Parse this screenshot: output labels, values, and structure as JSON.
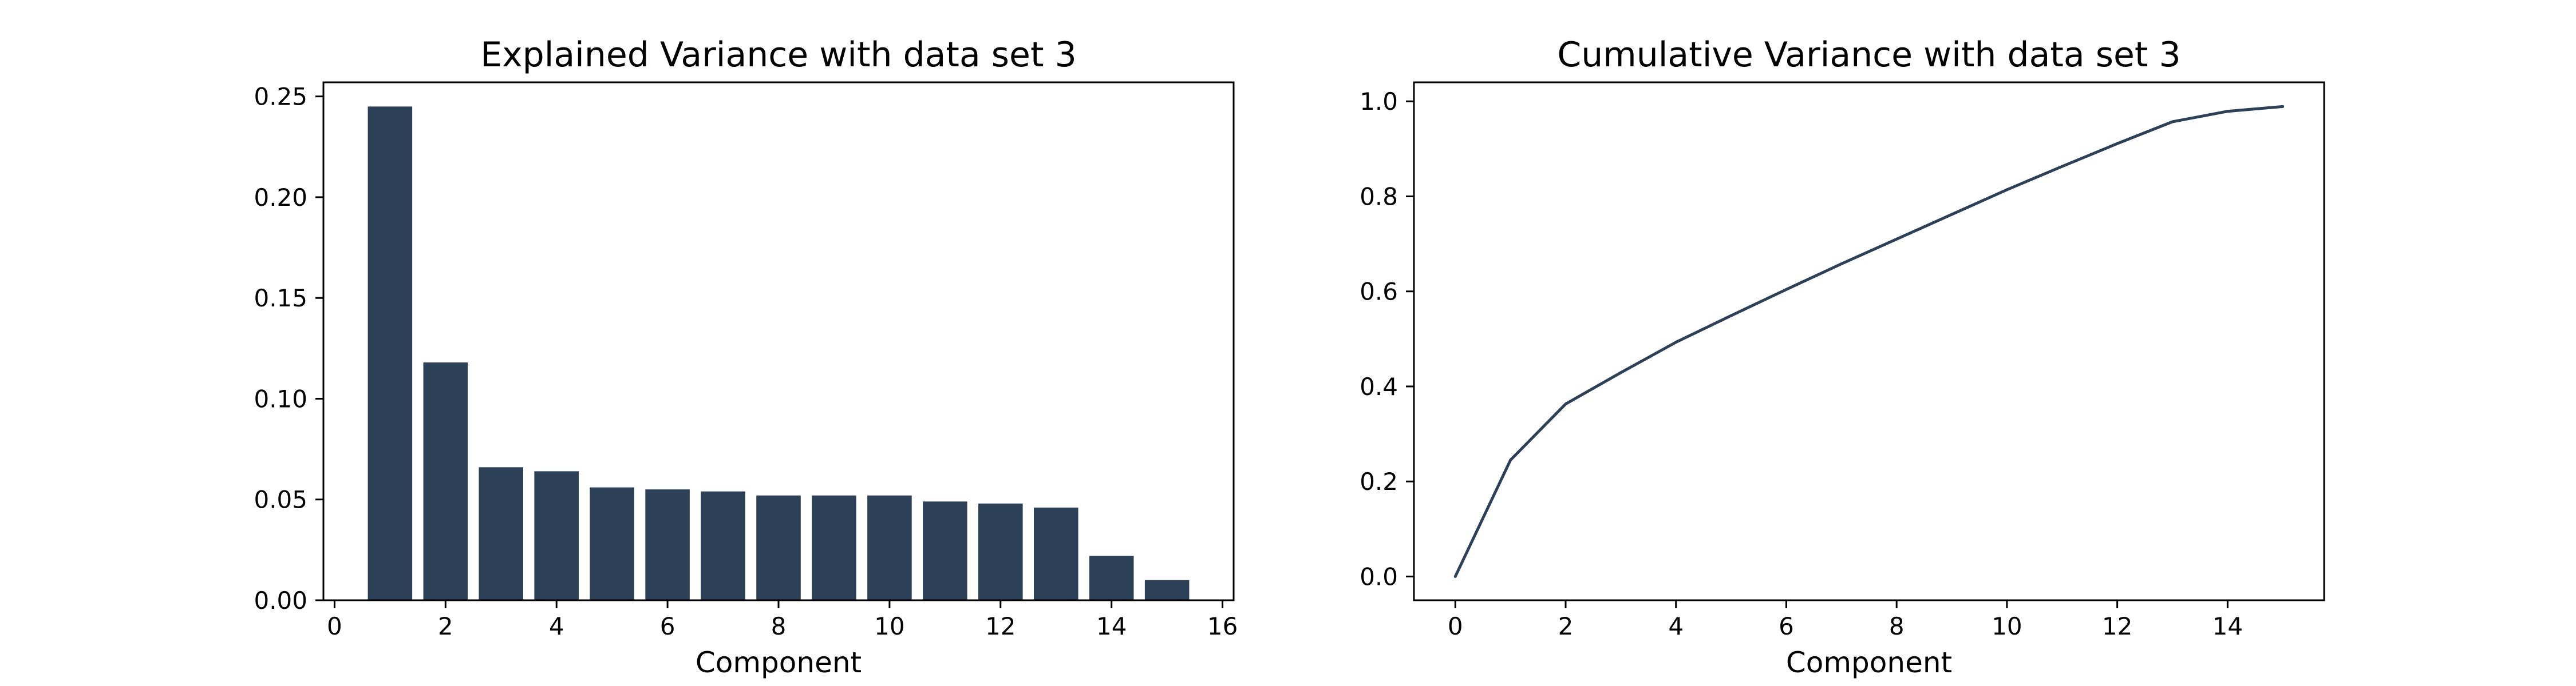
{
  "colors": {
    "series": "#2c4057",
    "axes": "#000000",
    "background": "#ffffff"
  },
  "chart_data": [
    {
      "type": "bar",
      "title": "Explained Variance with data set 3",
      "xlabel": "Component",
      "ylabel": "",
      "x": [
        1,
        2,
        3,
        4,
        5,
        6,
        7,
        8,
        9,
        10,
        11,
        12,
        13,
        14,
        15
      ],
      "values": [
        0.245,
        0.118,
        0.066,
        0.064,
        0.056,
        0.055,
        0.054,
        0.052,
        0.052,
        0.052,
        0.049,
        0.048,
        0.046,
        0.022,
        0.01
      ],
      "xlim": [
        -0.2,
        16.2
      ],
      "ylim": [
        0,
        0.257
      ],
      "xticks": [
        "0",
        "2",
        "4",
        "6",
        "8",
        "10",
        "12",
        "14",
        "16"
      ],
      "yticks": [
        "0.00",
        "0.05",
        "0.10",
        "0.15",
        "0.20",
        "0.25"
      ],
      "grid": false
    },
    {
      "type": "line",
      "title": "Cumulative Variance with data set 3",
      "xlabel": "Component",
      "ylabel": "",
      "x": [
        0,
        1,
        2,
        3,
        4,
        5,
        6,
        7,
        8,
        9,
        10,
        11,
        12,
        13,
        14,
        15
      ],
      "values": [
        0.0,
        0.245,
        0.363,
        0.429,
        0.493,
        0.549,
        0.604,
        0.658,
        0.71,
        0.762,
        0.814,
        0.863,
        0.911,
        0.957,
        0.979,
        0.989
      ],
      "xlim": [
        -0.75,
        15.75
      ],
      "ylim": [
        -0.05,
        1.04
      ],
      "xticks": [
        "0",
        "2",
        "4",
        "6",
        "8",
        "10",
        "12",
        "14"
      ],
      "yticks": [
        "0.0",
        "0.2",
        "0.4",
        "0.6",
        "0.8",
        "1.0"
      ],
      "grid": false
    }
  ]
}
